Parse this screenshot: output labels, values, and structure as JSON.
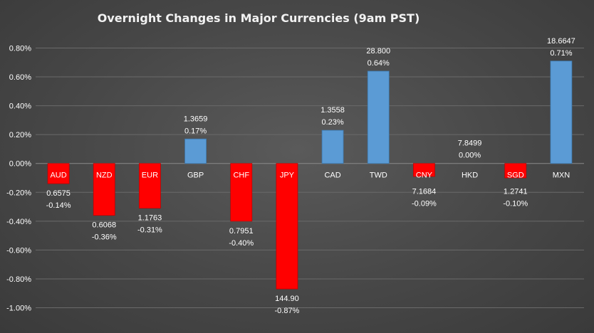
{
  "chart_data": {
    "type": "bar",
    "title": "Overnight Changes in Major Currencies (9am PST)",
    "categories": [
      "AUD",
      "NZD",
      "EUR",
      "GBP",
      "CHF",
      "JPY",
      "CAD",
      "TWD",
      "CNY",
      "HKD",
      "SGD",
      "MXN"
    ],
    "values": [
      -0.14,
      -0.36,
      -0.31,
      0.17,
      -0.4,
      -0.87,
      0.23,
      0.64,
      -0.09,
      0.0,
      -0.1,
      0.71
    ],
    "rates": [
      "0.6575",
      "0.6068",
      "1.1763",
      "1.3659",
      "0.7951",
      "144.90",
      "1.3558",
      "28.800",
      "7.1684",
      "7.8499",
      "1.2741",
      "18.6647"
    ],
    "value_labels": [
      "-0.14%",
      "-0.36%",
      "-0.31%",
      "0.17%",
      "-0.40%",
      "-0.87%",
      "0.23%",
      "0.64%",
      "-0.09%",
      "0.00%",
      "-0.10%",
      "0.71%"
    ],
    "y_ticks": [
      0.8,
      0.6,
      0.4,
      0.2,
      0.0,
      -0.2,
      -0.4,
      -0.6,
      -0.8,
      -1.0
    ],
    "y_tick_labels": [
      "0.80%",
      "0.60%",
      "0.40%",
      "0.20%",
      "0.00%",
      "-0.20%",
      "-0.40%",
      "-0.60%",
      "-0.80%",
      "-1.00%"
    ],
    "ylim": [
      -1.0,
      0.8
    ],
    "xlabel": "",
    "ylabel": "",
    "grid": true,
    "colors": {
      "positive": "#5b9bd5",
      "negative": "#ff0000"
    }
  }
}
